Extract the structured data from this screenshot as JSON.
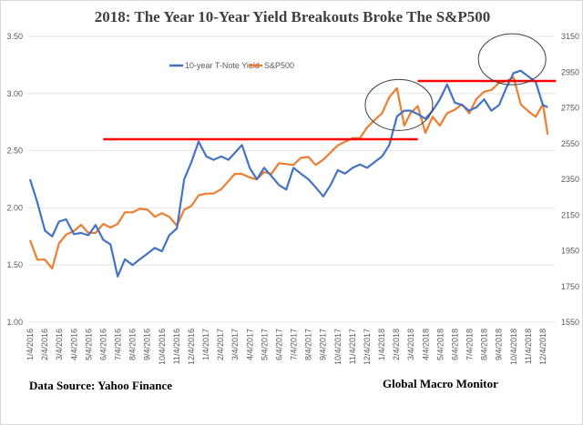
{
  "chart_data": {
    "type": "line",
    "title": "2018:  The Year 10-Year Yield Breakouts Broke The S&P500",
    "y_left": {
      "ylim": [
        1.0,
        3.5
      ],
      "ticks": [
        "3.50",
        "3.00",
        "2.50",
        "2.00",
        "1.50",
        "1.00"
      ]
    },
    "y_right": {
      "ylim": [
        1550,
        3150
      ],
      "ticks": [
        "3150",
        "2950",
        "2750",
        "2550",
        "2350",
        "2150",
        "1950",
        "1750",
        "1550"
      ]
    },
    "x_ticks": [
      "1/4/2016",
      "2/4/2016",
      "3/4/2016",
      "4/4/2016",
      "5/4/2016",
      "6/4/2016",
      "7/4/2016",
      "8/4/2016",
      "9/4/2016",
      "10/4/2016",
      "11/4/2016",
      "12/4/2016",
      "1/4/2017",
      "2/4/2017",
      "3/4/2017",
      "4/4/2017",
      "5/4/2017",
      "6/4/2017",
      "7/4/2017",
      "8/4/2017",
      "9/4/2017",
      "10/4/2017",
      "11/4/2017",
      "12/4/2017",
      "1/4/2018",
      "2/4/2018",
      "3/4/2018",
      "4/4/2018",
      "5/4/2018",
      "6/4/2018",
      "7/4/2018",
      "8/4/2018",
      "9/4/2018",
      "10/4/2018",
      "11/4/2018",
      "12/4/2018"
    ],
    "grid": true,
    "legend_position": "top-center",
    "x": [
      "2016-01-04",
      "2016-01-19",
      "2016-02-04",
      "2016-02-19",
      "2016-03-04",
      "2016-03-19",
      "2016-04-04",
      "2016-04-19",
      "2016-05-04",
      "2016-05-19",
      "2016-06-04",
      "2016-06-19",
      "2016-07-04",
      "2016-07-19",
      "2016-08-04",
      "2016-08-19",
      "2016-09-04",
      "2016-09-19",
      "2016-10-04",
      "2016-10-19",
      "2016-11-04",
      "2016-11-19",
      "2016-12-04",
      "2016-12-19",
      "2017-01-04",
      "2017-01-19",
      "2017-02-04",
      "2017-02-19",
      "2017-03-04",
      "2017-03-19",
      "2017-04-04",
      "2017-04-19",
      "2017-05-04",
      "2017-05-19",
      "2017-06-04",
      "2017-06-19",
      "2017-07-04",
      "2017-07-19",
      "2017-08-04",
      "2017-08-19",
      "2017-09-04",
      "2017-09-19",
      "2017-10-04",
      "2017-10-19",
      "2017-11-04",
      "2017-11-19",
      "2017-12-04",
      "2017-12-19",
      "2018-01-04",
      "2018-01-19",
      "2018-02-04",
      "2018-02-19",
      "2018-03-04",
      "2018-03-19",
      "2018-04-04",
      "2018-04-19",
      "2018-05-04",
      "2018-05-19",
      "2018-06-04",
      "2018-06-19",
      "2018-07-04",
      "2018-07-19",
      "2018-08-04",
      "2018-08-19",
      "2018-09-04",
      "2018-09-19",
      "2018-10-04",
      "2018-10-19",
      "2018-11-04",
      "2018-11-19",
      "2018-12-04",
      "2018-12-14"
    ],
    "series": [
      {
        "name": "10-year T-Note Yield",
        "axis": "left",
        "color": "#4472c4",
        "values": [
          2.25,
          2.05,
          1.8,
          1.75,
          1.88,
          1.9,
          1.77,
          1.78,
          1.76,
          1.85,
          1.72,
          1.68,
          1.4,
          1.55,
          1.5,
          1.55,
          1.6,
          1.65,
          1.62,
          1.76,
          1.82,
          2.25,
          2.4,
          2.58,
          2.45,
          2.42,
          2.45,
          2.42,
          2.48,
          2.55,
          2.35,
          2.25,
          2.35,
          2.28,
          2.2,
          2.16,
          2.35,
          2.3,
          2.25,
          2.18,
          2.1,
          2.2,
          2.33,
          2.3,
          2.35,
          2.38,
          2.35,
          2.4,
          2.45,
          2.55,
          2.8,
          2.85,
          2.85,
          2.82,
          2.78,
          2.85,
          2.95,
          3.08,
          2.92,
          2.9,
          2.85,
          2.88,
          2.95,
          2.85,
          2.9,
          3.05,
          3.18,
          3.2,
          3.15,
          3.1,
          2.9,
          2.88
        ]
      },
      {
        "name": "S&P500",
        "axis": "right",
        "color": "#ed7d31",
        "values": [
          2010,
          1900,
          1900,
          1850,
          1990,
          2040,
          2060,
          2095,
          2050,
          2050,
          2100,
          2080,
          2100,
          2165,
          2165,
          2185,
          2180,
          2140,
          2160,
          2140,
          2090,
          2180,
          2200,
          2260,
          2270,
          2270,
          2295,
          2340,
          2380,
          2380,
          2360,
          2350,
          2390,
          2380,
          2440,
          2435,
          2430,
          2470,
          2475,
          2430,
          2460,
          2500,
          2540,
          2560,
          2580,
          2580,
          2640,
          2680,
          2720,
          2810,
          2860,
          2650,
          2720,
          2760,
          2610,
          2700,
          2650,
          2720,
          2740,
          2770,
          2720,
          2800,
          2840,
          2850,
          2890,
          2900,
          2920,
          2770,
          2730,
          2700,
          2770,
          2600
        ]
      }
    ],
    "annotations": {
      "resistance_lines": [
        {
          "color": "#ff0000",
          "axis": "left",
          "value": 2.6,
          "from": "2016-06-04",
          "to": "2018-03-19"
        },
        {
          "color": "#ff0000",
          "axis": "left",
          "value": 3.11,
          "from": "2018-03-19",
          "to": "2018-12-31"
        }
      ],
      "circles": [
        {
          "center_date": "2018-02-08",
          "center_yield": 2.9
        },
        {
          "center_date": "2018-10-01",
          "center_yield": 3.3
        }
      ]
    }
  },
  "footer": {
    "source": "Data Source:  Yahoo Finance",
    "brand": "Global Macro Monitor"
  }
}
